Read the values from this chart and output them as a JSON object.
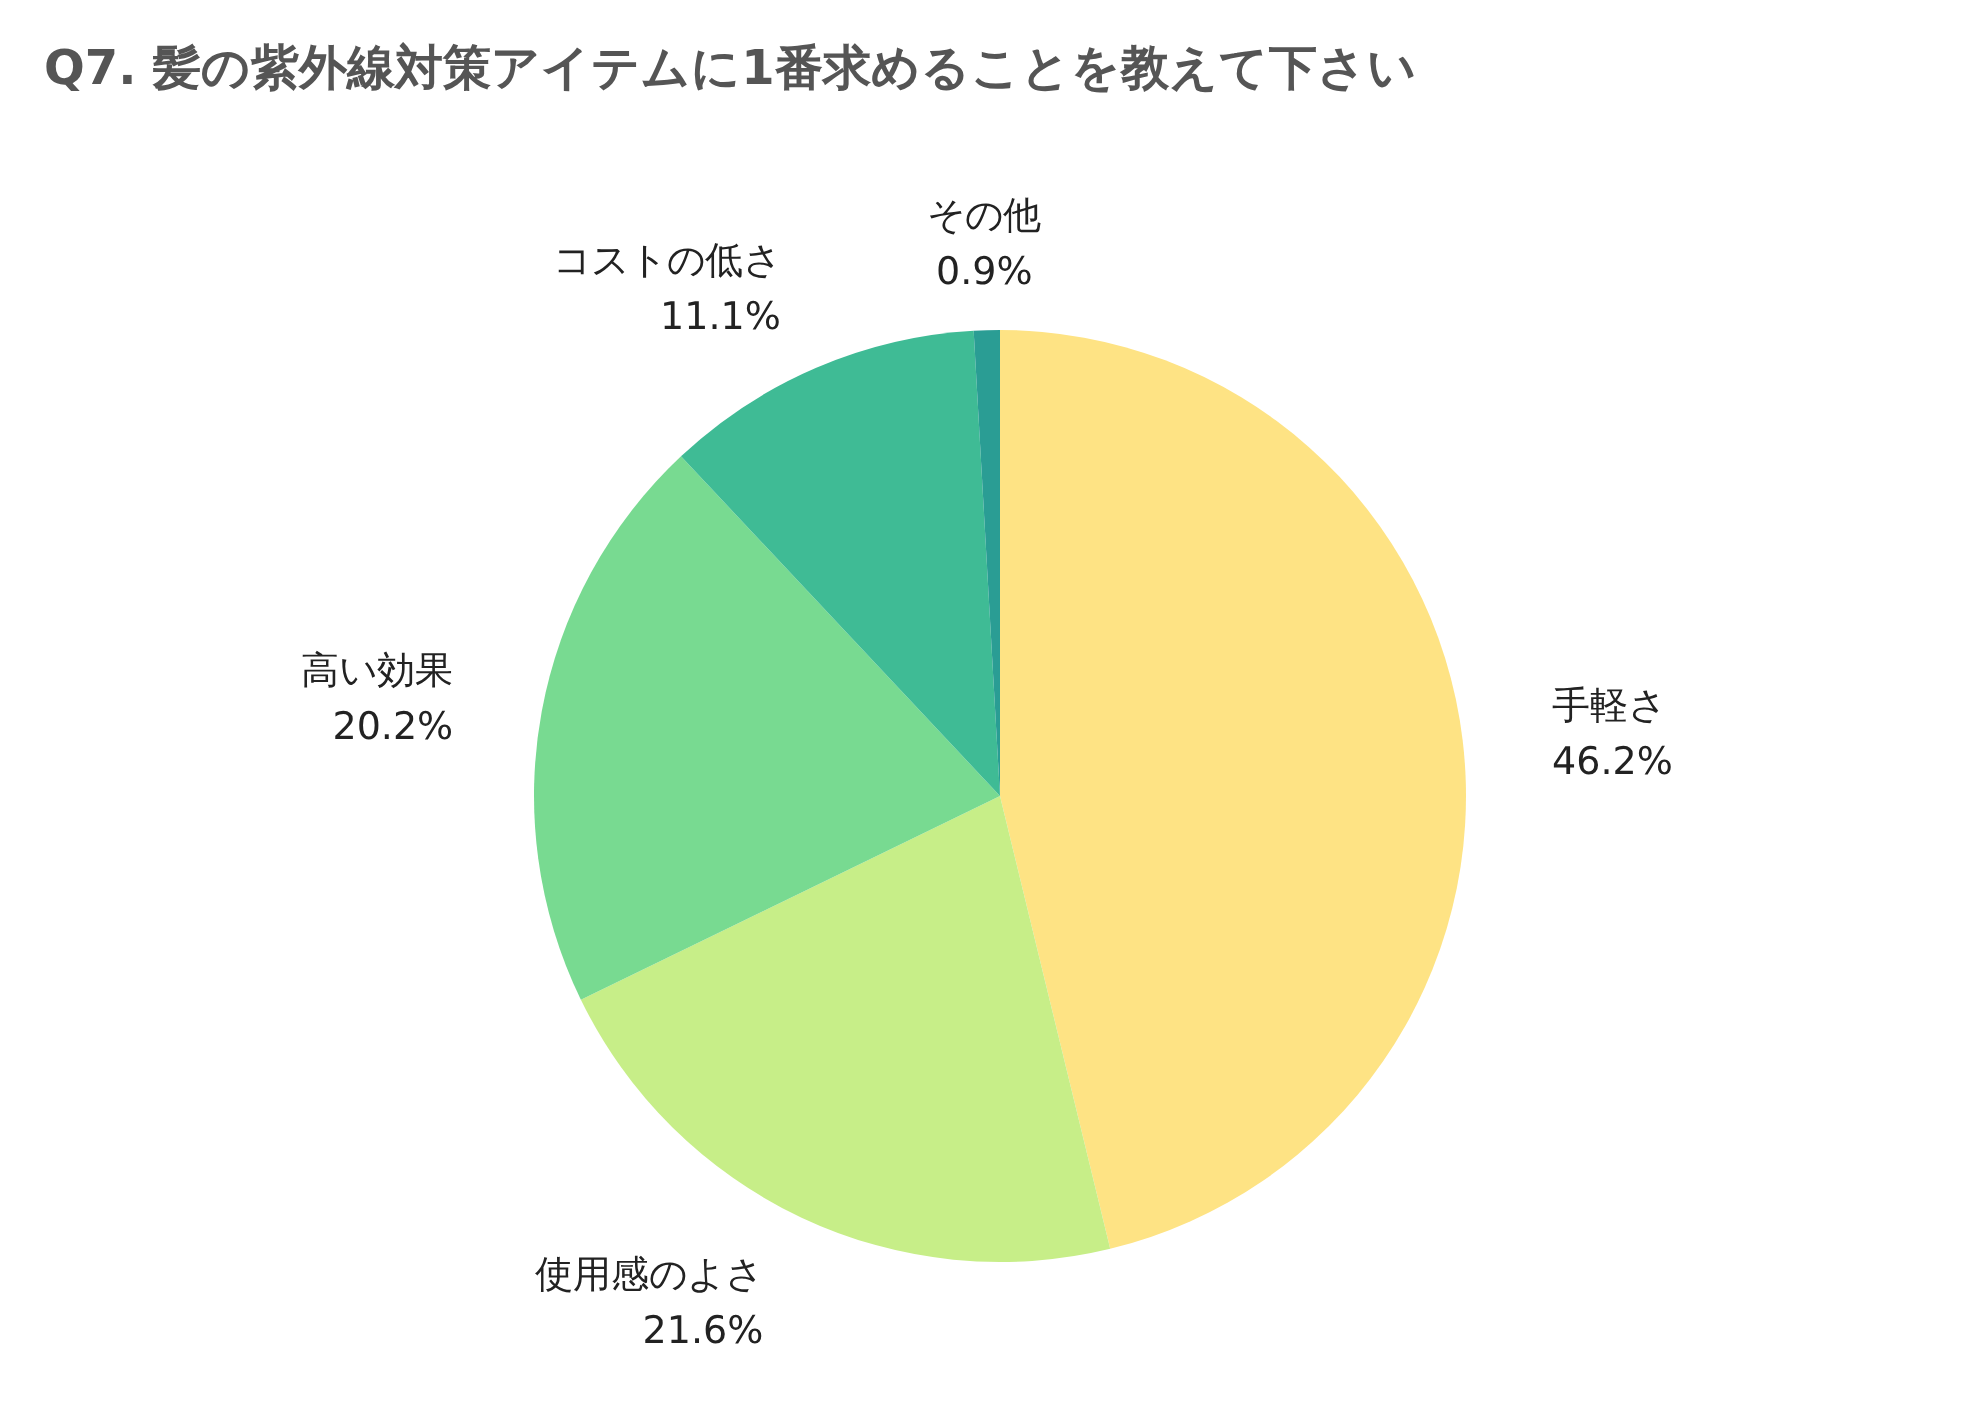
{
  "chart_data": {
    "type": "pie",
    "title": "Q7. 髪の紫外線対策アイテムに1番求めることを教えて下さい",
    "categories": [
      "手軽さ",
      "使用感のよさ",
      "高い効果",
      "コストの低さ",
      "その他"
    ],
    "values": [
      46.2,
      21.6,
      20.2,
      11.1,
      0.9
    ],
    "value_labels": [
      "46.2%",
      "21.6%",
      "20.2%",
      "11.1%",
      "0.9%"
    ],
    "colors": [
      "#fee384",
      "#c7ee88",
      "#78da91",
      "#3fbb95",
      "#2a9d94"
    ],
    "legend": false
  }
}
